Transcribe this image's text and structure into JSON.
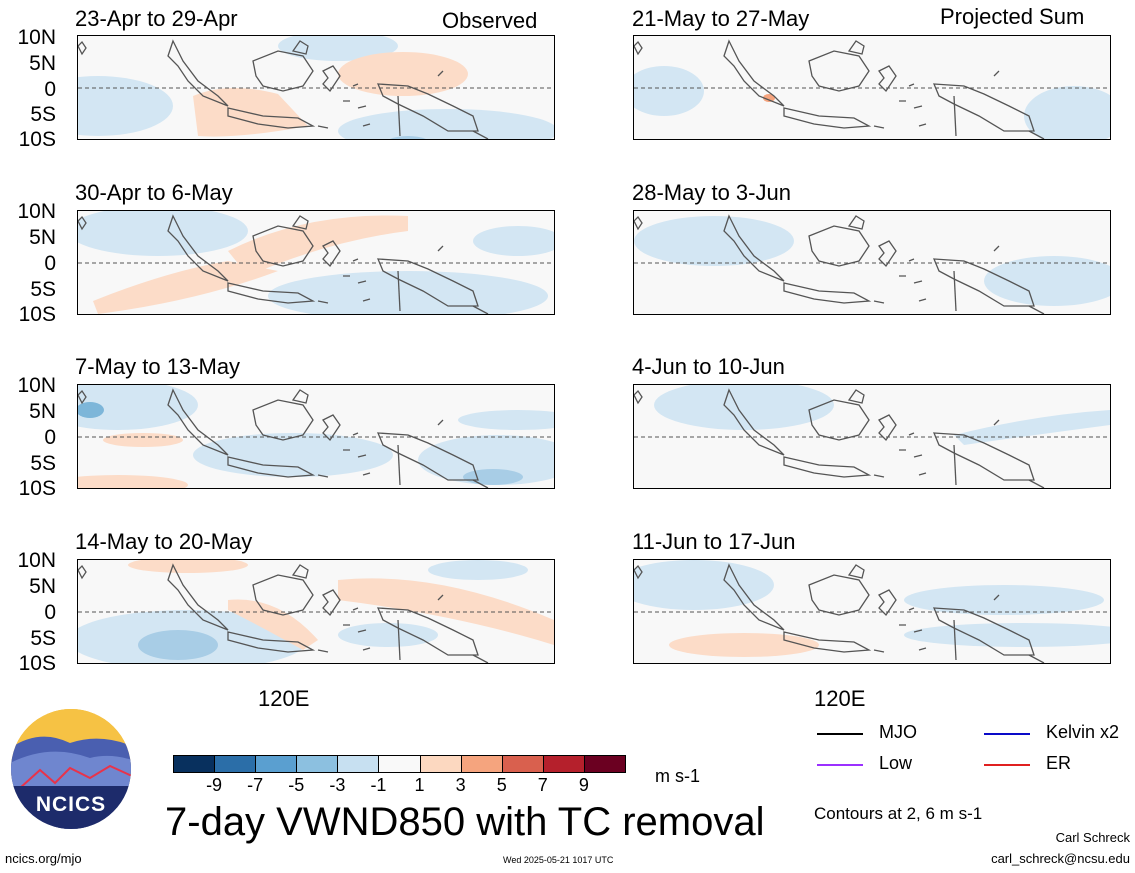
{
  "header": {
    "left_label": "Observed",
    "right_label": "Projected Sum"
  },
  "panels": [
    {
      "id": "p1",
      "title": "23-Apr to 29-Apr",
      "group": "observed"
    },
    {
      "id": "p2",
      "title": "30-Apr to 6-May",
      "group": "observed"
    },
    {
      "id": "p3",
      "title": "7-May to 13-May",
      "group": "observed"
    },
    {
      "id": "p4",
      "title": "14-May to 20-May",
      "group": "observed"
    },
    {
      "id": "p5",
      "title": "21-May to 27-May",
      "group": "projected"
    },
    {
      "id": "p6",
      "title": "28-May to 3-Jun",
      "group": "projected"
    },
    {
      "id": "p7",
      "title": "4-Jun to 10-Jun",
      "group": "projected"
    },
    {
      "id": "p8",
      "title": "11-Jun to 17-Jun",
      "group": "projected"
    }
  ],
  "lat_labels": [
    "10N",
    "5N",
    "0",
    "5S",
    "10S"
  ],
  "lon_label": "120E",
  "colorbar": {
    "ticks": [
      "-9",
      "-7",
      "-5",
      "-3",
      "-1",
      "1",
      "3",
      "5",
      "7",
      "9"
    ],
    "colors": [
      "#08305e",
      "#2b6ea8",
      "#5a9fd0",
      "#8cc0e0",
      "#c7e0f1",
      "#f9f9f9",
      "#fcd8c0",
      "#f5a47e",
      "#d9604e",
      "#b5202c",
      "#6b0021"
    ],
    "units": "m s-1"
  },
  "legend": {
    "items": [
      {
        "label": "MJO",
        "color": "#000000"
      },
      {
        "label": "Kelvin x2",
        "color": "#0a0ac8"
      },
      {
        "label": "Low",
        "color": "#9b30ff"
      },
      {
        "label": "ER",
        "color": "#e02020"
      }
    ],
    "contours_note": "Contours at 2, 6 m s-1"
  },
  "main_title": "7-day VWND850 with TC removal",
  "logo": {
    "text": "NCICS"
  },
  "footer": {
    "left": "ncics.org/mjo",
    "center": "Wed 2025-05-21 1017 UTC",
    "author": "Carl Schreck",
    "email": "carl_schreck@ncsu.edu"
  },
  "colors": {
    "neg_light": "#d3e6f3",
    "neg_mid": "#a8cde6",
    "neg_dark": "#7db6d9",
    "pos_light": "#fcdcc8",
    "land_outline": "#555555"
  }
}
